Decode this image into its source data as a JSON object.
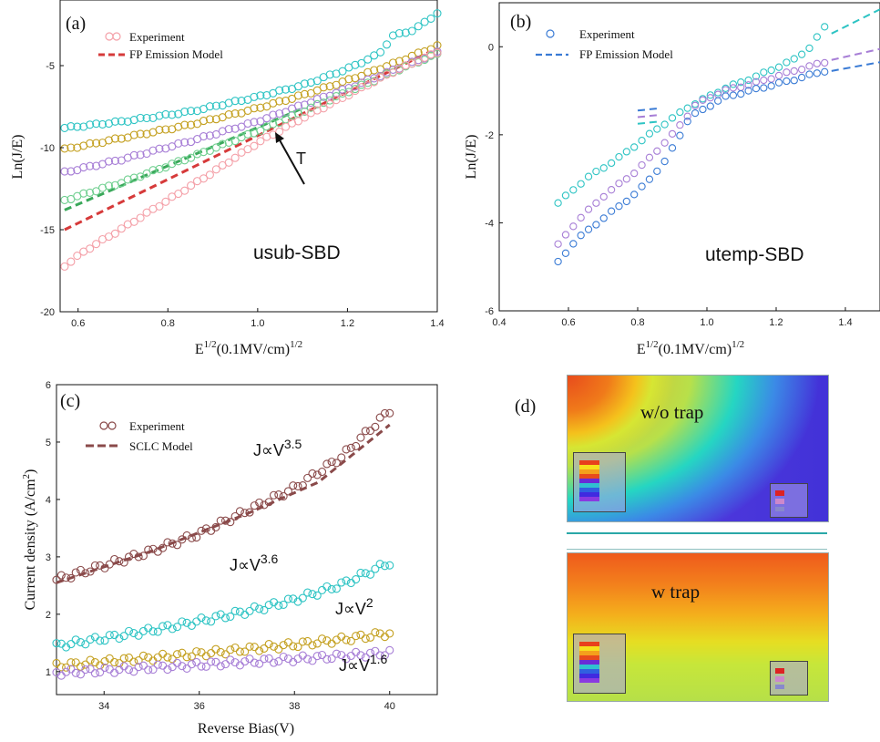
{
  "chart_data": [
    {
      "panel": "(a)",
      "type": "scatter",
      "xlabel_base": "E",
      "xlabel_sup": "1/2",
      "xlabel_mid": "(0.1MV/cm)",
      "xlabel_sup2": "1/2",
      "ylabel": "Ln(J/E)",
      "xlim": [
        0.56,
        1.4
      ],
      "ylim": [
        -20,
        -1
      ],
      "xticks": [
        "0.6",
        "0.8",
        "1.0",
        "1.2",
        "1.4"
      ],
      "yticks": [
        "-5",
        "-10",
        "-15",
        "-20"
      ],
      "legend": [
        "Experiment",
        "FP Emission Model"
      ],
      "text_label": "usub-SBD",
      "arrow_label": "T",
      "series": [
        {
          "color": "#2ec4c4",
          "x": [
            0.57,
            0.7,
            0.85,
            1.0,
            1.1,
            1.2,
            1.27,
            1.3,
            1.35,
            1.4
          ],
          "y": [
            -8.8,
            -8.4,
            -7.8,
            -6.9,
            -6.2,
            -5.2,
            -4.3,
            -3.2,
            -2.8,
            -1.8
          ]
        },
        {
          "color": "#c4a020",
          "x": [
            0.57,
            0.7,
            0.85,
            1.0,
            1.1,
            1.2,
            1.3,
            1.4
          ],
          "y": [
            -10.1,
            -9.4,
            -8.6,
            -7.6,
            -6.8,
            -5.9,
            -4.9,
            -3.8
          ]
        },
        {
          "color": "#a77ed6",
          "x": [
            0.57,
            0.7,
            0.85,
            1.0,
            1.1,
            1.2,
            1.3,
            1.4
          ],
          "y": [
            -11.5,
            -10.7,
            -9.6,
            -8.4,
            -7.4,
            -6.4,
            -5.3,
            -4.2
          ]
        },
        {
          "color": "#6fcf8f",
          "x": [
            0.57,
            0.7,
            0.85,
            1.0,
            1.1,
            1.2,
            1.3,
            1.4
          ],
          "y": [
            -13.2,
            -12.1,
            -10.6,
            -9.0,
            -7.8,
            -6.6,
            -5.4,
            -4.3
          ]
        },
        {
          "color": "#f4a0a8",
          "x": [
            0.57,
            0.62,
            0.7,
            0.8,
            0.9,
            1.0,
            1.1,
            1.2,
            1.3,
            1.4
          ],
          "y": [
            -17.2,
            -16.2,
            -14.9,
            -13.2,
            -11.5,
            -9.7,
            -8.2,
            -6.8,
            -5.4,
            -4.2
          ]
        }
      ],
      "models": [
        {
          "color": "#d63a3a",
          "x": [
            0.57,
            1.38
          ],
          "y": [
            -15.0,
            -4.2
          ]
        },
        {
          "color": "#3aa85a",
          "x": [
            0.57,
            1.1
          ],
          "y": [
            -13.8,
            -7.6
          ]
        }
      ]
    },
    {
      "panel": "(b)",
      "type": "scatter",
      "xlabel_base": "E",
      "xlabel_sup": "1/2",
      "xlabel_mid": "(0.1MV/cm)",
      "xlabel_sup2": "1/2",
      "ylabel": "Ln(J/E)",
      "xlim": [
        0.4,
        1.5
      ],
      "ylim": [
        -6,
        1
      ],
      "xticks": [
        "0.4",
        "0.6",
        "0.8",
        "1.0",
        "1.2",
        "1.4"
      ],
      "yticks": [
        "0",
        "-2",
        "-4",
        "-6"
      ],
      "legend": [
        "Experiment",
        "FP Emission Model"
      ],
      "text_label": "utemp-SBD",
      "series": [
        {
          "color": "#2ec4c4",
          "x": [
            0.57,
            0.65,
            0.75,
            0.85,
            0.95,
            1.05,
            1.15,
            1.25,
            1.3,
            1.34
          ],
          "y": [
            -3.55,
            -3.0,
            -2.5,
            -1.9,
            -1.35,
            -0.95,
            -0.65,
            -0.3,
            0.0,
            0.45
          ]
        },
        {
          "color": "#a77ed6",
          "x": [
            0.57,
            0.62,
            0.7,
            0.8,
            0.9,
            0.97,
            1.05,
            1.15,
            1.25,
            1.34
          ],
          "y": [
            -4.5,
            -4.0,
            -3.4,
            -2.8,
            -2.0,
            -1.3,
            -1.0,
            -0.8,
            -0.55,
            -0.35
          ]
        },
        {
          "color": "#3a7bd5",
          "x": [
            0.57,
            0.62,
            0.7,
            0.8,
            0.88,
            0.95,
            1.05,
            1.15,
            1.25,
            1.34
          ],
          "y": [
            -4.9,
            -4.4,
            -3.9,
            -3.3,
            -2.6,
            -1.6,
            -1.15,
            -0.95,
            -0.75,
            -0.55
          ]
        }
      ],
      "models": [
        {
          "color": "#2ec4c4",
          "x": [
            1.36,
            1.5
          ],
          "y": [
            0.3,
            0.85
          ]
        },
        {
          "color": "#a77ed6",
          "x": [
            1.36,
            1.5
          ],
          "y": [
            -0.3,
            -0.05
          ]
        },
        {
          "color": "#3a7bd5",
          "x": [
            1.36,
            1.5
          ],
          "y": [
            -0.55,
            -0.35
          ]
        },
        {
          "color": "#2ec4c4",
          "x": [
            0.8,
            0.86
          ],
          "y": [
            -1.75,
            -1.7
          ]
        },
        {
          "color": "#a77ed6",
          "x": [
            0.8,
            0.86
          ],
          "y": [
            -1.6,
            -1.55
          ]
        },
        {
          "color": "#3a7bd5",
          "x": [
            0.8,
            0.86
          ],
          "y": [
            -1.45,
            -1.4
          ]
        }
      ]
    },
    {
      "panel": "(c)",
      "type": "scatter",
      "xlabel": "Reverse Bias(V)",
      "ylabel": "Current density (A/cm",
      "ylabel_sup": "2",
      "ylabel_end": ")",
      "xlim": [
        33,
        41
      ],
      "ylim": [
        0.6,
        6
      ],
      "xticks": [
        "34",
        "36",
        "38",
        "40"
      ],
      "yticks": [
        "1",
        "2",
        "3",
        "4",
        "5",
        "6"
      ],
      "legend": [
        "Experiment",
        "SCLC Model"
      ],
      "annotations": [
        {
          "base": "J∝V",
          "sup": "3.5"
        },
        {
          "base": "J∝V",
          "sup": "3.6"
        },
        {
          "base": "J∝V",
          "sup": "2"
        },
        {
          "base": "J∝V",
          "sup": "1.6"
        }
      ],
      "series": [
        {
          "color": "#8a4a4a",
          "x": [
            33,
            34,
            35,
            36,
            37,
            38,
            39,
            40
          ],
          "y": [
            2.6,
            2.85,
            3.1,
            3.4,
            3.8,
            4.2,
            4.75,
            5.55
          ]
        },
        {
          "color": "#2ec4c4",
          "x": [
            33,
            34,
            35,
            36,
            37,
            38,
            39,
            40
          ],
          "y": [
            1.45,
            1.58,
            1.72,
            1.88,
            2.05,
            2.25,
            2.52,
            2.9
          ]
        },
        {
          "color": "#c4a020",
          "x": [
            33,
            34,
            35,
            36,
            37,
            38,
            39,
            40
          ],
          "y": [
            1.1,
            1.17,
            1.24,
            1.31,
            1.39,
            1.47,
            1.56,
            1.67
          ]
        },
        {
          "color": "#a77ed6",
          "x": [
            33,
            34,
            35,
            36,
            37,
            38,
            39,
            40
          ],
          "y": [
            0.98,
            1.02,
            1.07,
            1.12,
            1.17,
            1.22,
            1.27,
            1.33
          ]
        }
      ],
      "models": [
        {
          "color": "#8a4a4a",
          "x": [
            33,
            35,
            37,
            38.5,
            40
          ],
          "y": [
            2.55,
            3.1,
            3.75,
            4.3,
            5.3
          ]
        }
      ]
    }
  ],
  "panel_d": {
    "label": "(d)",
    "top_label": "w/o trap",
    "bottom_label": "w trap"
  }
}
